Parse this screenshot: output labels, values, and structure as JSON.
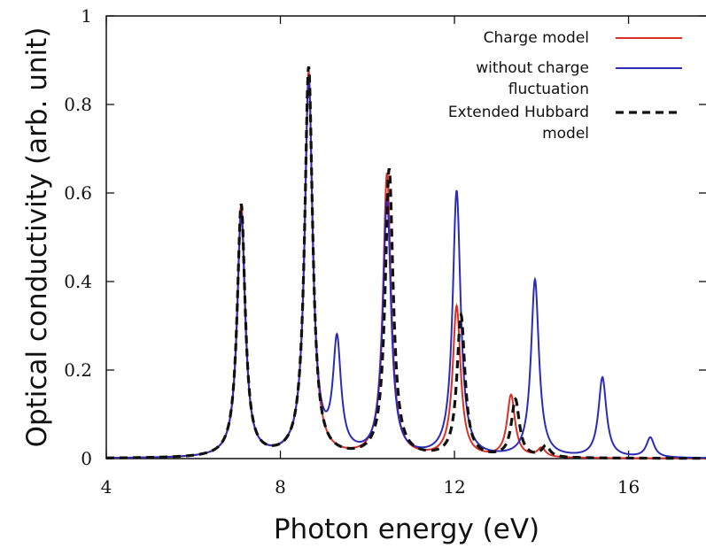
{
  "chart_data": {
    "type": "line",
    "title": "",
    "xlabel": "Photon energy (eV)",
    "ylabel": "Optical conductivity (arb. unit)",
    "xlim": [
      4,
      17.8
    ],
    "ylim": [
      0,
      1
    ],
    "xticks": [
      "4",
      "8",
      "12",
      "16"
    ],
    "yticks": [
      "0",
      "0.2",
      "0.4",
      "0.6",
      "0.8",
      "1"
    ],
    "grid": false,
    "legend_position": "top-right",
    "series": [
      {
        "name": "Charge model",
        "color": "#d93025",
        "style": "solid",
        "peaks": [
          {
            "x": 7.1,
            "y": 0.57
          },
          {
            "x": 8.65,
            "y": 0.87
          },
          {
            "x": 10.45,
            "y": 0.64
          },
          {
            "x": 12.05,
            "y": 0.34
          },
          {
            "x": 13.3,
            "y": 0.14
          },
          {
            "x": 14.0,
            "y": 0.02
          }
        ]
      },
      {
        "name": "without charge fluctuation",
        "color": "#2b2bb8",
        "style": "solid",
        "peaks": [
          {
            "x": 7.1,
            "y": 0.55
          },
          {
            "x": 8.65,
            "y": 0.85
          },
          {
            "x": 9.3,
            "y": 0.25
          },
          {
            "x": 10.45,
            "y": 0.58
          },
          {
            "x": 12.05,
            "y": 0.6
          },
          {
            "x": 13.85,
            "y": 0.4
          },
          {
            "x": 15.4,
            "y": 0.18
          },
          {
            "x": 16.5,
            "y": 0.045
          }
        ]
      },
      {
        "name": "Extended Hubbard model",
        "color": "#111111",
        "style": "dashed",
        "peaks": [
          {
            "x": 7.1,
            "y": 0.57
          },
          {
            "x": 8.65,
            "y": 0.88
          },
          {
            "x": 10.5,
            "y": 0.65
          },
          {
            "x": 12.15,
            "y": 0.32
          },
          {
            "x": 13.4,
            "y": 0.13
          },
          {
            "x": 14.1,
            "y": 0.025
          }
        ]
      }
    ],
    "legend": [
      {
        "lines": [
          "Charge model"
        ]
      },
      {
        "lines": [
          "without charge",
          "fluctuation"
        ]
      },
      {
        "lines": [
          "Extended Hubbard",
          "model"
        ]
      }
    ]
  }
}
